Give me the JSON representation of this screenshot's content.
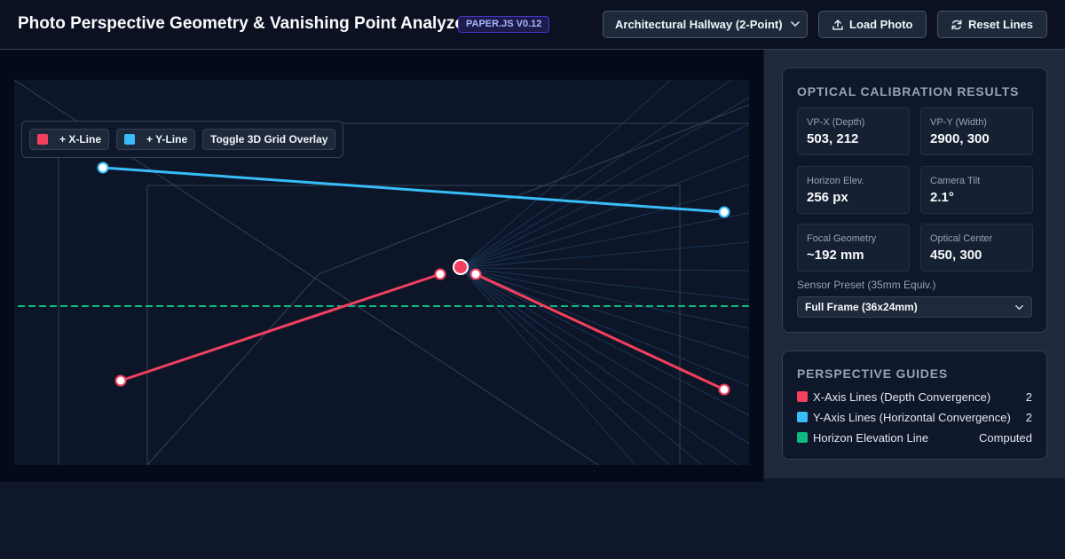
{
  "header": {
    "title": "Photo Perspective Geometry & Vanishing Point Analyzer",
    "version_badge": "PAPER.JS V0.12",
    "scene_preset": "Architectural Hallway (2-Point)",
    "load_label": "Load Photo",
    "reset_label": "Reset Lines",
    "icons": {
      "load": "upload-icon",
      "reset": "refresh-icon",
      "dropdown": "chevron-down-icon"
    }
  },
  "toolbar": {
    "add_x_label": "+ X-Line",
    "add_y_label": "+ Y-Line",
    "grid_toggle_label": "Toggle 3D Grid Overlay"
  },
  "colors": {
    "x_line": "#f43f5e",
    "y_line": "#38bdf8",
    "horizon": "#10b981"
  },
  "calibration": {
    "title": "OPTICAL CALIBRATION RESULTS",
    "stats": [
      {
        "label": "VP-X (Depth)",
        "value": "503, 212"
      },
      {
        "label": "VP-Y (Width)",
        "value": "2900, 300"
      },
      {
        "label": "Horizon Elev.",
        "value": "256 px"
      },
      {
        "label": "Camera Tilt",
        "value": "2.1°"
      },
      {
        "label": "Focal Geometry",
        "value": "~192 mm"
      },
      {
        "label": "Optical Center",
        "value": "450, 300"
      }
    ],
    "sensor_label": "Sensor Preset (35mm Equiv.)",
    "sensor_value": "Full Frame (36x24mm)"
  },
  "guides": {
    "title": "PERSPECTIVE GUIDES",
    "items": [
      {
        "label": "X-Axis Lines (Depth Convergence)",
        "value": "2"
      },
      {
        "label": "Y-Axis Lines (Horizontal Convergence)",
        "value": "2"
      },
      {
        "label": "Horizon Elevation Line",
        "value": "Computed"
      }
    ]
  }
}
